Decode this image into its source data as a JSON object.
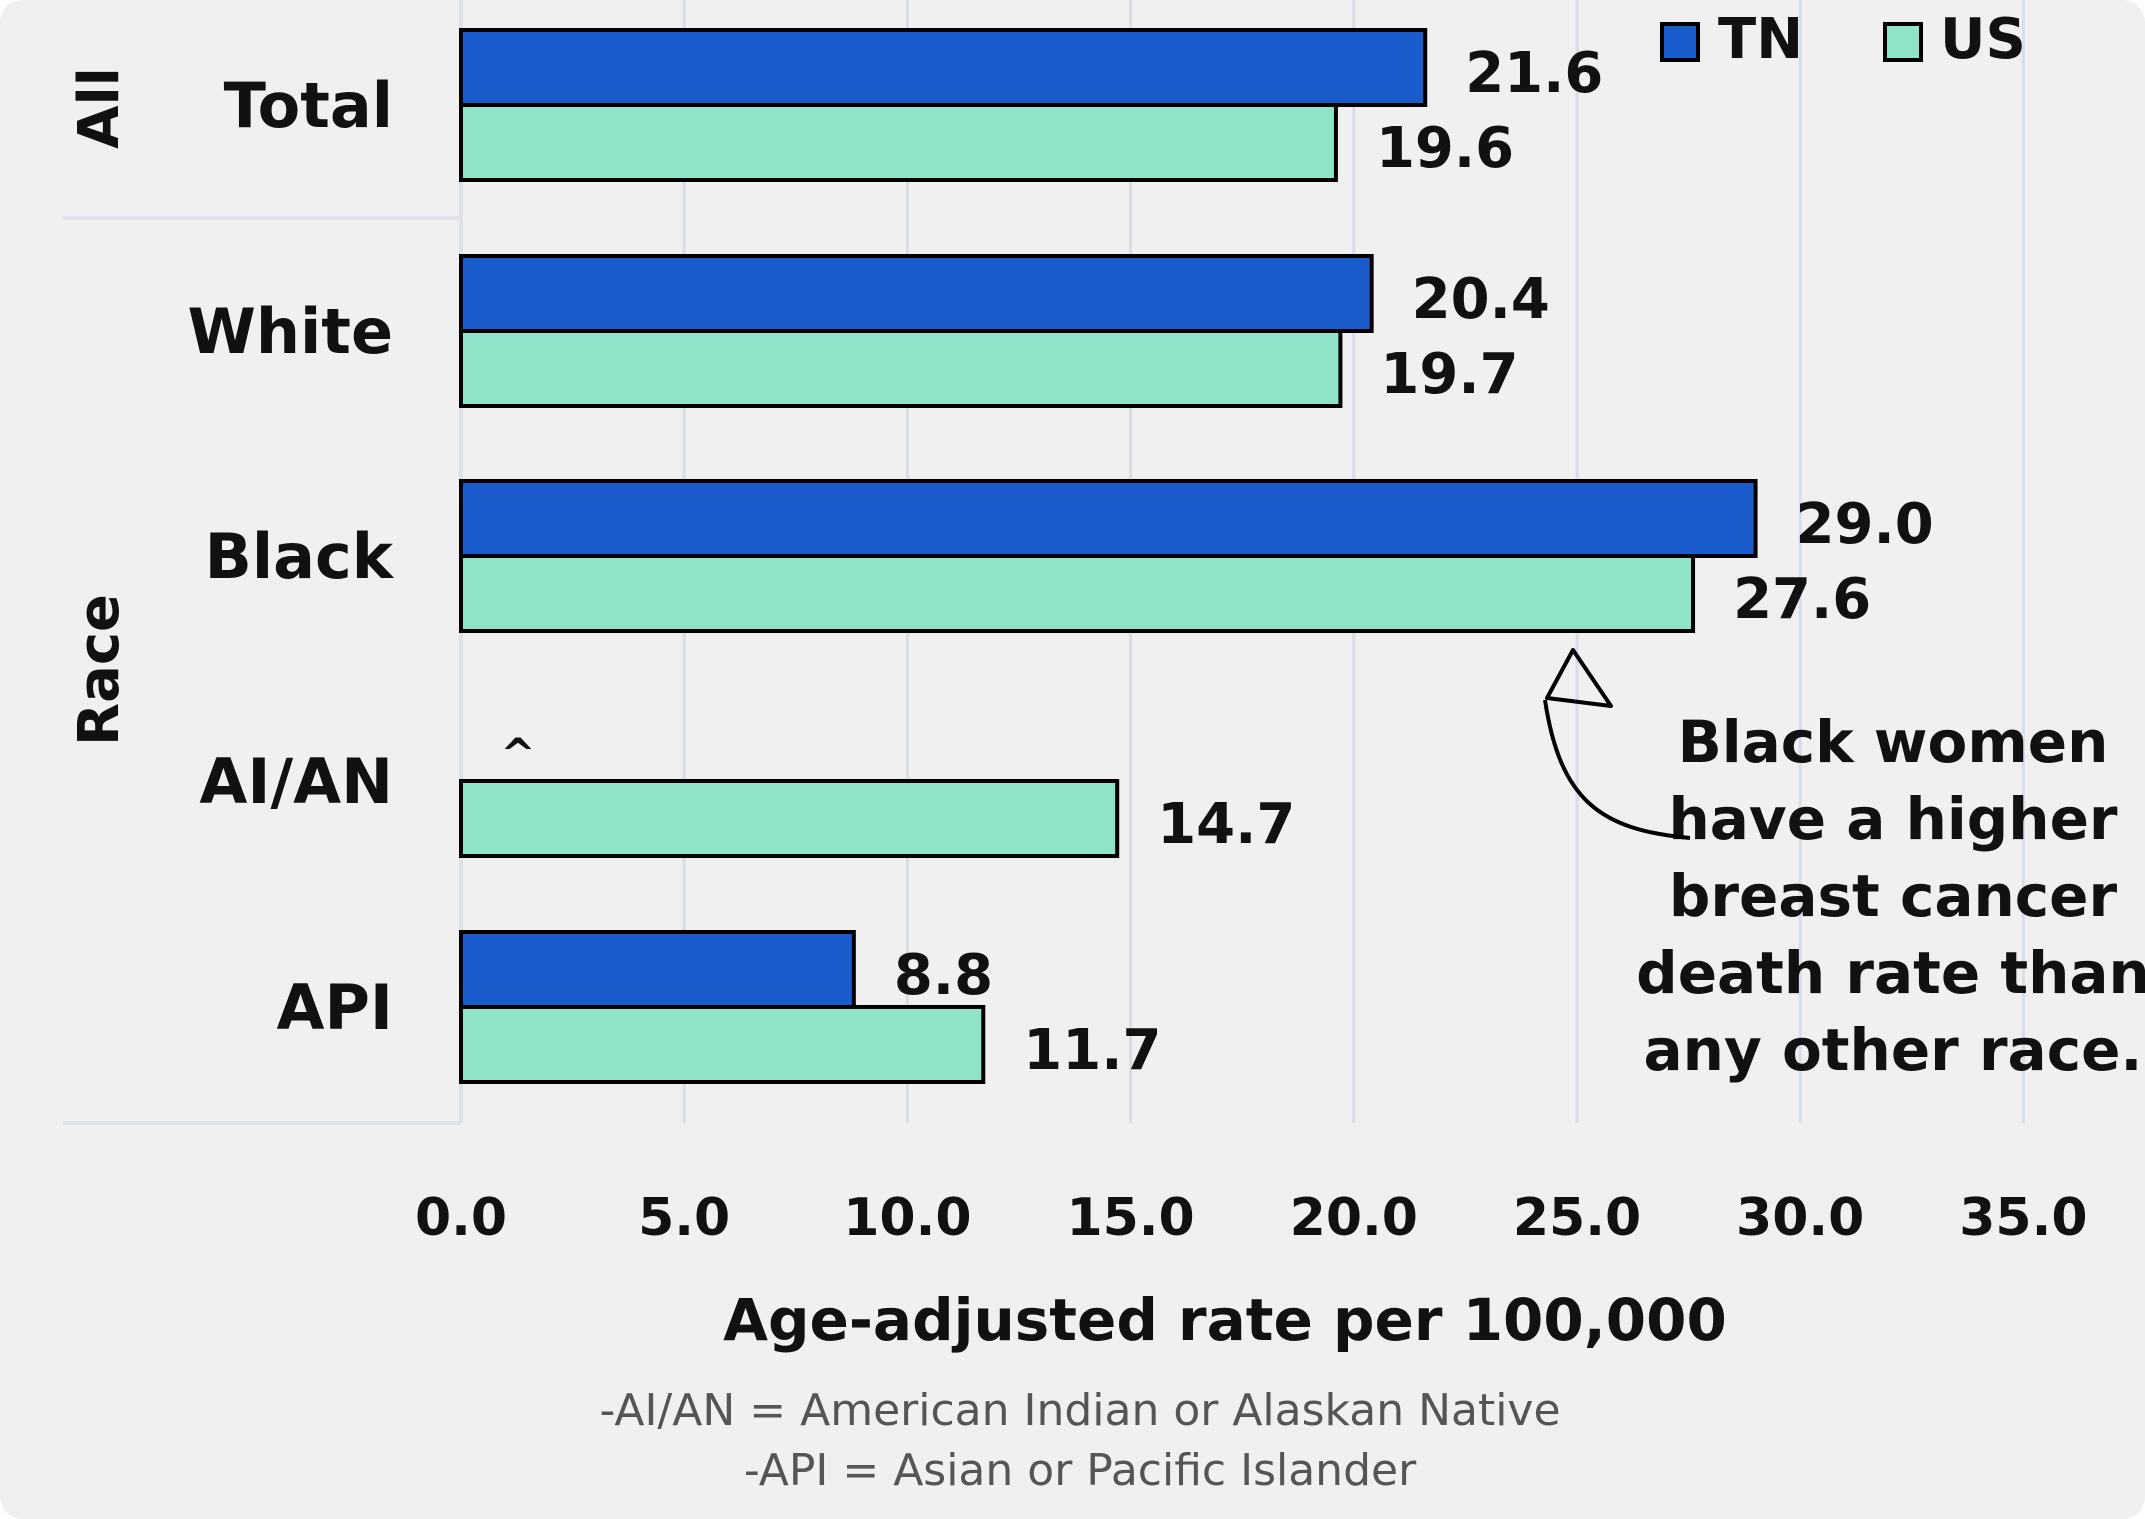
{
  "chart_data": {
    "type": "bar",
    "orientation": "horizontal",
    "groups": [
      {
        "label": "All",
        "categories": [
          "Total"
        ]
      },
      {
        "label": "Race",
        "categories": [
          "White",
          "Black",
          "AI/AN",
          "API"
        ]
      }
    ],
    "categories": [
      "Total",
      "White",
      "Black",
      "AI/AN",
      "API"
    ],
    "series": [
      {
        "name": "TN",
        "color": "#1a5ccc",
        "values": [
          21.6,
          20.4,
          29.0,
          null,
          8.8
        ]
      },
      {
        "name": "US",
        "color": "#8ee3c8",
        "values": [
          19.6,
          19.7,
          27.6,
          14.7,
          11.7
        ]
      }
    ],
    "value_labels": {
      "TN": [
        "21.6",
        "20.4",
        "29.0",
        "^",
        "8.8"
      ],
      "US": [
        "19.6",
        "19.7",
        "27.6",
        "14.7",
        "11.7"
      ]
    },
    "xlabel": "Age-adjusted rate per 100,000",
    "xlim": [
      0,
      37.5
    ],
    "xticks": [
      0,
      5,
      10,
      15,
      20,
      25,
      30,
      35
    ],
    "xtick_labels": [
      "0.0",
      "5.0",
      "10.0",
      "15.0",
      "20.0",
      "25.0",
      "30.0",
      "35.0"
    ],
    "grid": "vertical",
    "legend": {
      "placement": "top-right",
      "entries": [
        "TN",
        "US"
      ]
    },
    "annotation": {
      "lines": [
        "Black women",
        "have a higher",
        "breast cancer",
        "death rate than",
        "any other race."
      ],
      "arrow_target_value": 25.0
    },
    "footnotes": [
      "-AI/AN = American Indian or Alaskan Native",
      "-API = Asian or Pacific Islander"
    ],
    "colors": {
      "background": "#f0f0f0",
      "grid": "#d8dde6",
      "tn": "#1a5ccc",
      "us": "#8ee3c8"
    }
  }
}
